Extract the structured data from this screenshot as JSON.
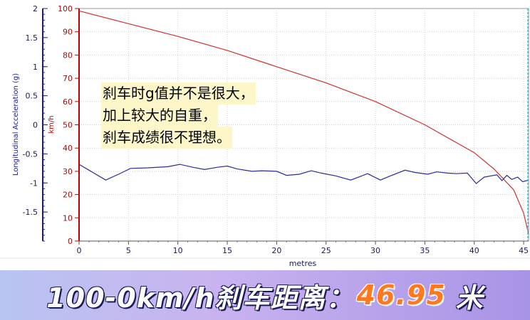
{
  "chart_data": {
    "type": "line",
    "xlabel": "metres",
    "x_ticks": [
      0,
      5,
      10,
      15,
      20,
      25,
      30,
      35,
      40,
      45
    ],
    "xlim": [
      0,
      45.5
    ],
    "y_left": {
      "label": "Longitudinal Acceleration (g)",
      "ticks": [
        "2",
        "1.5",
        "1",
        "0.5",
        "0",
        "-0.5",
        "-1",
        "-1.5"
      ],
      "tick_values": [
        2,
        1.5,
        1,
        0.5,
        0,
        -0.5,
        -1,
        -1.5
      ],
      "lim": [
        -2,
        2
      ],
      "color": "#1a1a8c"
    },
    "y_right": {
      "label": "km/h",
      "ticks": [
        "100",
        "90",
        "80",
        "70",
        "60",
        "50",
        "40",
        "30",
        "20",
        "10",
        "0"
      ],
      "tick_values": [
        100,
        90,
        80,
        70,
        60,
        50,
        40,
        30,
        20,
        10,
        0
      ],
      "lim": [
        0,
        100
      ],
      "color": "#c00000"
    },
    "series": [
      {
        "axis": "right",
        "color": "#d03030",
        "x": [
          0,
          5,
          10,
          15,
          20,
          25,
          30,
          35,
          40,
          42,
          44,
          45,
          45.5
        ],
        "y": [
          99,
          93.5,
          88,
          82,
          75,
          68,
          60,
          50,
          38,
          31,
          22,
          12,
          3
        ]
      },
      {
        "axis": "left",
        "color": "#2b2b9c",
        "x": [
          0,
          1,
          2.7,
          4,
          5.2,
          7,
          9,
          10.2,
          11.5,
          12.7,
          14,
          15,
          16,
          17.5,
          18.5,
          20,
          21,
          22.3,
          23.5,
          24.5,
          26,
          27.5,
          29.2,
          30.5,
          31.5,
          33,
          34,
          35.3,
          36.2,
          37.3,
          38.2,
          39.3,
          40.2,
          41,
          42.3,
          42.8,
          43.3,
          43.8,
          44.4,
          44.9,
          45.5
        ],
        "y": [
          -0.68,
          -0.78,
          -0.95,
          -0.85,
          -0.75,
          -0.74,
          -0.72,
          -0.68,
          -0.73,
          -0.77,
          -0.73,
          -0.71,
          -0.76,
          -0.8,
          -0.79,
          -0.8,
          -0.87,
          -0.85,
          -0.79,
          -0.83,
          -0.88,
          -0.95,
          -0.84,
          -0.95,
          -0.88,
          -0.78,
          -0.82,
          -0.85,
          -0.81,
          -0.83,
          -0.84,
          -0.83,
          -1.01,
          -0.9,
          -0.86,
          -0.96,
          -0.87,
          -0.94,
          -0.9,
          -0.98,
          -0.95
        ]
      }
    ]
  },
  "annotation": {
    "lines": [
      "刹车时g值并不是很大，",
      "加上较大的自重，",
      "刹车成绩很不理想。"
    ]
  },
  "caption": {
    "prefix": "100-0km/h刹车距离：",
    "value": "46.95",
    "unit": "米"
  }
}
